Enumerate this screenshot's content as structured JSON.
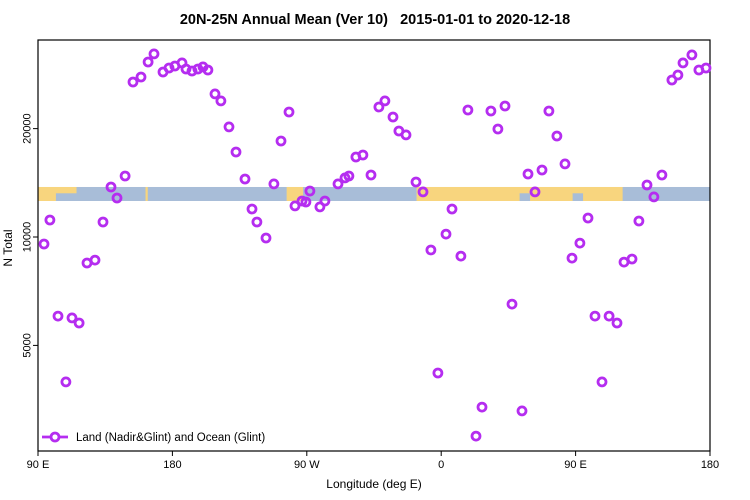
{
  "chart_data": {
    "type": "scatter",
    "title": "20N-25N Annual Mean (Ver 10)   2015-01-01 to 2020-12-18",
    "xlabel": "Longitude (deg E)",
    "ylabel": "N Total",
    "xlim": [
      90,
      540
    ],
    "ylim": [
      2545,
      35250
    ],
    "yscale": "log",
    "grid": "off",
    "x_ticks": [
      {
        "value": 90,
        "label": "90 E"
      },
      {
        "value": 180,
        "label": "180"
      },
      {
        "value": 270,
        "label": "90 W"
      },
      {
        "value": 360,
        "label": "0"
      },
      {
        "value": 450,
        "label": "90 E"
      },
      {
        "value": 540,
        "label": "180"
      }
    ],
    "y_ticks": [
      {
        "value": 5000,
        "label": "5000"
      },
      {
        "value": 10000,
        "label": "10000"
      },
      {
        "value": 20000,
        "label": "20000"
      }
    ],
    "legend": {
      "position": "bottom-left",
      "label": "Land (Nadir&Glint) and Ocean (Glint)"
    },
    "map_band": {
      "n_top": 13770,
      "n_bottom": 12590,
      "ocean_color": "#a8bdd8",
      "land_color": "#f8d57e",
      "land_segments": [
        [
          90,
          115.8
        ],
        [
          162,
          163.5
        ],
        [
          256.5,
          267.5
        ],
        [
          343.5,
          481.5
        ]
      ],
      "ocean_notches": [
        [
          102,
          116
        ],
        [
          412.5,
          419.5
        ],
        [
          448,
          455
        ]
      ]
    },
    "series": [
      {
        "name": "Land (Nadir&Glint) and Ocean (Glint)",
        "marker": "open-circle",
        "color": "#b52df0",
        "points": [
          [
            94.0,
            9560
          ],
          [
            98.0,
            11150
          ],
          [
            103.4,
            6030
          ],
          [
            108.7,
            3960
          ],
          [
            112.8,
            5960
          ],
          [
            117.5,
            5770
          ],
          [
            122.8,
            8470
          ],
          [
            128.2,
            8630
          ],
          [
            133.5,
            11010
          ],
          [
            138.9,
            13770
          ],
          [
            142.9,
            12830
          ],
          [
            148.3,
            14770
          ],
          [
            153.6,
            26950
          ],
          [
            159.0,
            27830
          ],
          [
            163.7,
            30630
          ],
          [
            167.7,
            32250
          ],
          [
            173.7,
            28730
          ],
          [
            177.7,
            29470
          ],
          [
            181.7,
            29850
          ],
          [
            186.4,
            30440
          ],
          [
            189.1,
            29290
          ],
          [
            193.1,
            28910
          ],
          [
            197.1,
            29290
          ],
          [
            200.5,
            29670
          ],
          [
            203.8,
            29100
          ],
          [
            208.5,
            24970
          ],
          [
            212.5,
            23880
          ],
          [
            217.9,
            20220
          ],
          [
            222.6,
            17220
          ],
          [
            228.6,
            14490
          ],
          [
            233.3,
            11960
          ],
          [
            236.6,
            11010
          ],
          [
            242.7,
            9940
          ],
          [
            248.0,
            14040
          ],
          [
            252.7,
            18480
          ],
          [
            258.1,
            22250
          ],
          [
            262.1,
            12200
          ],
          [
            266.8,
            12590
          ],
          [
            269.4,
            12510
          ],
          [
            272.1,
            13420
          ],
          [
            278.8,
            12120
          ],
          [
            282.1,
            12590
          ],
          [
            290.9,
            14040
          ],
          [
            295.6,
            14590
          ],
          [
            298.2,
            14770
          ],
          [
            302.9,
            16680
          ],
          [
            307.6,
            16900
          ],
          [
            313.0,
            14870
          ],
          [
            318.3,
            22960
          ],
          [
            322.3,
            23880
          ],
          [
            327.7,
            21540
          ],
          [
            331.7,
            19700
          ],
          [
            336.4,
            19210
          ],
          [
            343.1,
            14220
          ],
          [
            347.8,
            13340
          ],
          [
            353.1,
            9200
          ],
          [
            357.8,
            4190
          ],
          [
            363.2,
            10190
          ],
          [
            367.2,
            11960
          ],
          [
            373.2,
            8850
          ],
          [
            377.9,
            22530
          ],
          [
            383.3,
            2800
          ],
          [
            387.3,
            3370
          ],
          [
            393.3,
            22390
          ],
          [
            398.0,
            19950
          ],
          [
            402.7,
            23110
          ],
          [
            407.4,
            6510
          ],
          [
            414.1,
            3290
          ],
          [
            418.1,
            14960
          ],
          [
            422.8,
            13340
          ],
          [
            427.5,
            15350
          ],
          [
            432.1,
            22390
          ],
          [
            437.5,
            19080
          ],
          [
            442.9,
            15960
          ],
          [
            447.6,
            8740
          ],
          [
            452.9,
            9620
          ],
          [
            458.3,
            11290
          ],
          [
            463.0,
            6030
          ],
          [
            467.7,
            3960
          ],
          [
            472.4,
            6030
          ],
          [
            477.7,
            5770
          ],
          [
            482.4,
            8520
          ],
          [
            487.8,
            8690
          ],
          [
            492.4,
            11080
          ],
          [
            497.8,
            13950
          ],
          [
            502.4,
            12920
          ],
          [
            507.8,
            14870
          ],
          [
            514.5,
            27300
          ],
          [
            518.5,
            28180
          ],
          [
            521.9,
            30440
          ],
          [
            527.9,
            32040
          ],
          [
            532.6,
            29100
          ],
          [
            537.3,
            29470
          ]
        ]
      }
    ]
  }
}
